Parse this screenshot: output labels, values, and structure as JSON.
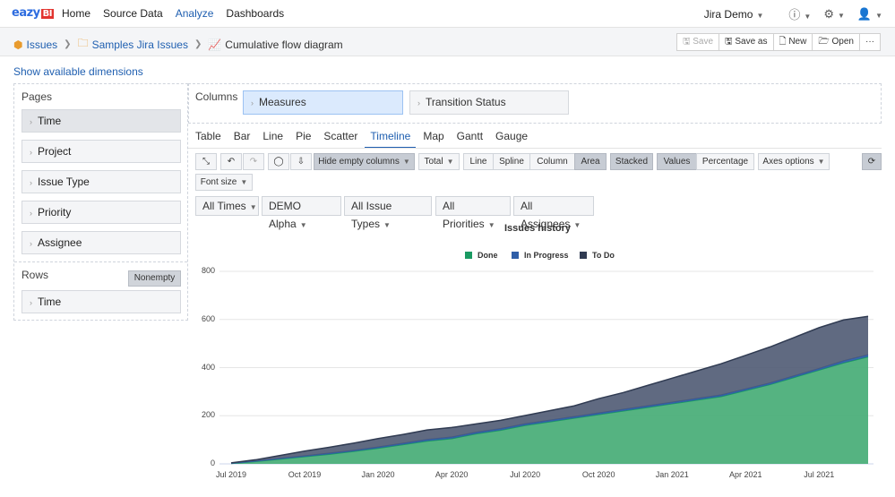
{
  "nav": {
    "logo": "eazyBI",
    "links": [
      "Home",
      "Source Data",
      "Analyze",
      "Dashboards"
    ],
    "active": "Analyze",
    "account": "Jira Demo"
  },
  "breadcrumb": {
    "items": [
      "Issues",
      "Samples Jira Issues",
      "Cumulative flow diagram"
    ]
  },
  "actions": {
    "save": "Save",
    "save_as": "Save as",
    "new": "New",
    "open": "Open",
    "more": "···"
  },
  "show_dimensions": "Show available dimensions",
  "pages": {
    "label": "Pages",
    "items": [
      "Time",
      "Project",
      "Issue Type",
      "Priority",
      "Assignee"
    ]
  },
  "rows": {
    "label": "Rows",
    "nonempty": "Nonempty",
    "items": [
      "Time"
    ]
  },
  "columns": {
    "label": "Columns",
    "items": [
      "Measures",
      "Transition Status"
    ]
  },
  "view_tabs": [
    "Table",
    "Bar",
    "Line",
    "Pie",
    "Scatter",
    "Timeline",
    "Map",
    "Gantt",
    "Gauge"
  ],
  "active_tab": "Timeline",
  "chart_toolbar": {
    "hide_empty": "Hide empty columns",
    "total": "Total",
    "line": "Line",
    "spline": "Spline",
    "column": "Column",
    "area": "Area",
    "stacked": "Stacked",
    "values": "Values",
    "percentage": "Percentage",
    "axes": "Axes options",
    "font_size": "Font size"
  },
  "filters": [
    "All Times",
    "DEMO Alpha",
    "All Issue Types",
    "All Priorities",
    "All Assignees"
  ],
  "chart_data": {
    "type": "area",
    "title": "Issues history",
    "stacked": true,
    "ylim": [
      0,
      800
    ],
    "yticks": [
      0,
      200,
      400,
      600,
      800
    ],
    "xticks": [
      "Jul 2019",
      "Oct 2019",
      "Jan 2020",
      "Apr 2020",
      "Jul 2020",
      "Oct 2020",
      "Jan 2021",
      "Apr 2021",
      "Jul 2021"
    ],
    "legend": "top-center",
    "x": [
      "Jul 2019",
      "Aug 2019",
      "Sep 2019",
      "Oct 2019",
      "Nov 2019",
      "Dec 2019",
      "Jan 2020",
      "Feb 2020",
      "Mar 2020",
      "Apr 2020",
      "May 2020",
      "Jun 2020",
      "Jul 2020",
      "Aug 2020",
      "Sep 2020",
      "Oct 2020",
      "Nov 2020",
      "Dec 2020",
      "Jan 2021",
      "Feb 2021",
      "Mar 2021",
      "Apr 2021",
      "May 2021",
      "Jun 2021",
      "Jul 2021",
      "Aug 2021",
      "Sep 2021"
    ],
    "series": [
      {
        "name": "Done",
        "color": "#4caf7a",
        "values": [
          2,
          10,
          20,
          30,
          40,
          52,
          65,
          80,
          95,
          105,
          125,
          140,
          160,
          175,
          190,
          205,
          220,
          235,
          250,
          265,
          280,
          305,
          330,
          360,
          390,
          420,
          445
        ]
      },
      {
        "name": "In Progress",
        "color": "#2f5ea8",
        "values": [
          1,
          2,
          3,
          3,
          4,
          4,
          5,
          5,
          6,
          6,
          6,
          6,
          6,
          6,
          6,
          6,
          6,
          6,
          6,
          6,
          6,
          6,
          6,
          6,
          6,
          8,
          8
        ]
      },
      {
        "name": "To Do",
        "color": "#4f5a73",
        "values": [
          1,
          5,
          12,
          20,
          25,
          30,
          35,
          37,
          40,
          40,
          35,
          35,
          35,
          40,
          45,
          60,
          70,
          85,
          100,
          115,
          130,
          140,
          150,
          160,
          170,
          170,
          160
        ]
      }
    ]
  }
}
